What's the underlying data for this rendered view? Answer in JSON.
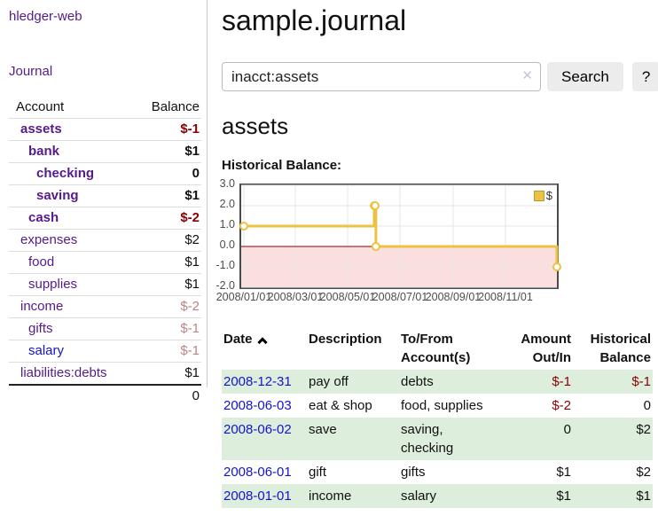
{
  "colors": {
    "purple": "#551a8b",
    "blue_link": "#1414cc",
    "neg_strong": "#8b0000",
    "neg_muted": "#b98585",
    "stripe_green": "#ddeedd",
    "chart_line": "#edc240",
    "chart_negative_bg": "#fbdede",
    "chart_zero_line": "#8b0000",
    "chart_frame": "#4a4a4a",
    "grid": "#e6e6e6",
    "border_light": "#dddddd",
    "border_dark": "#222222",
    "button_bg": "#ececec",
    "input_border": "#bbbbbb",
    "clear_icon": "#c9c2de",
    "tick_text": "#4d4d4d"
  },
  "sidebar": {
    "brand": "hledger-web",
    "journal_link": "Journal",
    "accounts_table": {
      "headers": {
        "account": "Account",
        "balance": "Balance"
      },
      "rows": [
        {
          "name": "assets",
          "balance": "$-1",
          "indent": 1,
          "bold": true,
          "balance_style": "neg-strong"
        },
        {
          "name": "bank",
          "balance": "$1",
          "indent": 2,
          "bold": true,
          "balance_style": "pos"
        },
        {
          "name": "checking",
          "balance": "0",
          "indent": 3,
          "bold": true,
          "balance_style": "pos"
        },
        {
          "name": "saving",
          "balance": "$1",
          "indent": 3,
          "bold": true,
          "balance_style": "pos"
        },
        {
          "name": "cash",
          "balance": "$-2",
          "indent": 2,
          "bold": true,
          "balance_style": "neg-strong"
        },
        {
          "name": "expenses",
          "balance": "$2",
          "indent": 1,
          "bold": false,
          "balance_style": "pos"
        },
        {
          "name": "food",
          "balance": "$1",
          "indent": 2,
          "bold": false,
          "balance_style": "pos"
        },
        {
          "name": "supplies",
          "balance": "$1",
          "indent": 2,
          "bold": false,
          "balance_style": "pos"
        },
        {
          "name": "income",
          "balance": "$-2",
          "indent": 1,
          "bold": false,
          "balance_style": "neg-muted"
        },
        {
          "name": "gifts",
          "balance": "$-1",
          "indent": 2,
          "bold": false,
          "balance_style": "neg-muted"
        },
        {
          "name": "salary",
          "balance": "$-1",
          "indent": 2,
          "bold": false,
          "balance_style": "neg-muted",
          "link_style": "blue"
        },
        {
          "name": "liabilities:debts",
          "balance": "$1",
          "indent": 1,
          "bold": false,
          "balance_style": "pos"
        }
      ],
      "total": "0"
    }
  },
  "header": {
    "title": "sample.journal"
  },
  "search": {
    "value": "inacct:assets",
    "clear_icon": "✕",
    "button_label": "Search",
    "help_label": "?"
  },
  "account_page": {
    "heading": "assets",
    "chart_label": "Historical Balance:"
  },
  "chart_data": {
    "type": "line",
    "step": true,
    "title": "Historical Balance",
    "series": [
      {
        "name": "$",
        "color": "#edc240",
        "points": [
          [
            "2008-01-01",
            1
          ],
          [
            "2008-06-01",
            2
          ],
          [
            "2008-06-02",
            2
          ],
          [
            "2008-06-03",
            0
          ],
          [
            "2008-12-31",
            -1
          ]
        ]
      }
    ],
    "x_range": [
      "2008-01-01",
      "2008-12-31"
    ],
    "x_ticks": [
      "2008/01/01",
      "2008/03/01",
      "2008/05/01",
      "2008/07/01",
      "2008/09/01",
      "2008/11/01"
    ],
    "y_ticks": [
      3,
      2,
      1,
      0,
      -1,
      -2
    ],
    "ylim": [
      -2,
      3
    ],
    "grid": true,
    "legend_position": "top-right",
    "negative_region_color": "#fbdede",
    "zero_line_color": "#8b0000"
  },
  "transactions": {
    "headers": {
      "date": "Date",
      "description": "Description",
      "accounts": "To/From Account(s)",
      "amount": "Amount Out/In",
      "balance": "Historical Balance"
    },
    "sort_icon": "chevron-up",
    "rows": [
      {
        "date": "2008-12-31",
        "description": "pay off",
        "accounts": [
          "debts"
        ],
        "amount": "$-1",
        "amount_neg": true,
        "balance": "$-1",
        "balance_neg": true
      },
      {
        "date": "2008-06-03",
        "description": "eat & shop",
        "accounts": [
          "food, supplies"
        ],
        "amount": "$-2",
        "amount_neg": true,
        "balance": "0",
        "balance_neg": false
      },
      {
        "date": "2008-06-02",
        "description": "save",
        "accounts": [
          "saving,",
          "checking"
        ],
        "amount": "0",
        "amount_neg": false,
        "balance": "$2",
        "balance_neg": false
      },
      {
        "date": "2008-06-01",
        "description": "gift",
        "accounts": [
          "gifts"
        ],
        "amount": "$1",
        "amount_neg": false,
        "balance": "$2",
        "balance_neg": false
      },
      {
        "date": "2008-01-01",
        "description": "income",
        "accounts": [
          "salary"
        ],
        "amount": "$1",
        "amount_neg": false,
        "balance": "$1",
        "balance_neg": false
      }
    ]
  }
}
